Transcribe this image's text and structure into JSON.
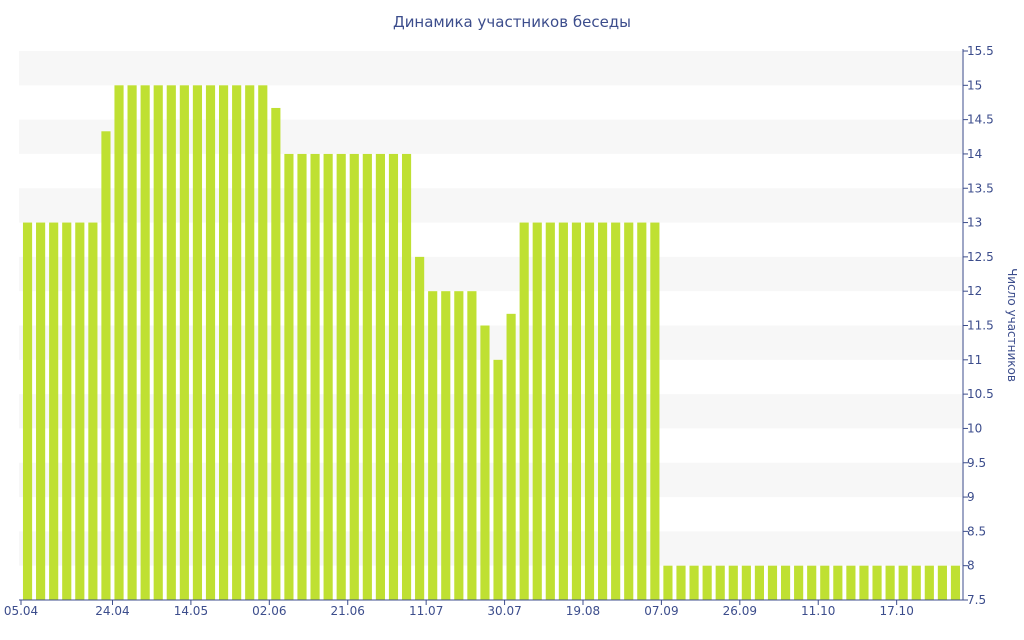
{
  "chart_data": {
    "type": "bar",
    "title": "Динамика участников беседы",
    "ylabel": "Число участников",
    "ylim": [
      7.5,
      15.5
    ],
    "y_ticks": [
      7.5,
      8,
      8.5,
      9,
      9.5,
      10,
      10.5,
      11,
      11.5,
      12,
      12.5,
      13,
      13.5,
      14,
      14.5,
      15,
      15.5
    ],
    "y_axis_position": "right",
    "x_tick_labels": [
      {
        "label": "05.04",
        "index": 0
      },
      {
        "label": "24.04",
        "index": 6.5
      },
      {
        "label": "14.05",
        "index": 12.5
      },
      {
        "label": "02.06",
        "index": 18.5
      },
      {
        "label": "21.06",
        "index": 24.5
      },
      {
        "label": "11.07",
        "index": 30.5
      },
      {
        "label": "30.07",
        "index": 36.5
      },
      {
        "label": "19.08",
        "index": 42.5
      },
      {
        "label": "07.09",
        "index": 48.5
      },
      {
        "label": "26.09",
        "index": 54.5
      },
      {
        "label": "11.10",
        "index": 60.5
      },
      {
        "label": "17.10",
        "index": 66.5
      }
    ],
    "values": [
      13,
      13,
      13,
      13,
      13,
      13,
      14.33,
      15,
      15,
      15,
      15,
      15,
      15,
      15,
      15,
      15,
      15,
      15,
      15,
      14.67,
      14,
      14,
      14,
      14,
      14,
      14,
      14,
      14,
      14,
      14,
      12.5,
      12,
      12,
      12,
      12,
      11.5,
      11,
      11.67,
      13,
      13,
      13,
      13,
      13,
      13,
      13,
      13,
      13,
      13,
      13,
      8,
      8,
      8,
      8,
      8,
      8,
      8,
      8,
      8,
      8,
      8,
      8,
      8,
      8,
      8,
      8,
      8,
      8,
      8,
      8,
      8,
      8,
      8
    ],
    "bar_color": "#bfe032",
    "band_color": "#f7f7f7",
    "text_color": "#3c4d8c",
    "grid": "alternating bands"
  }
}
